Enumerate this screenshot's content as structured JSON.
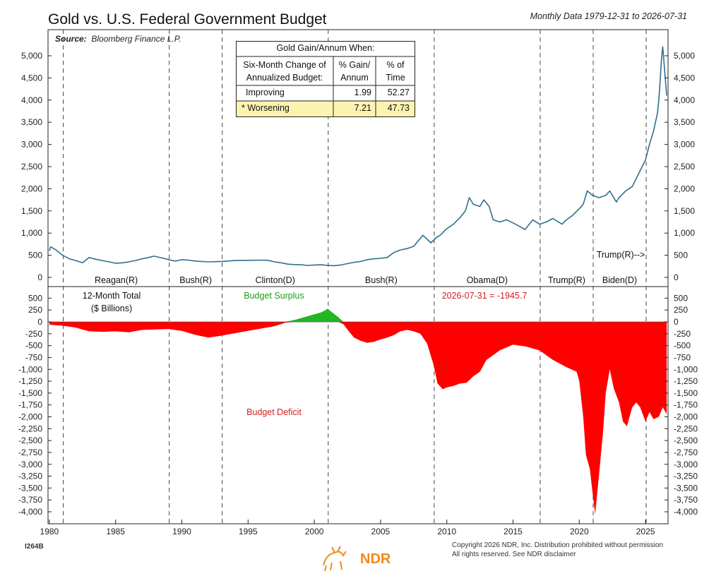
{
  "header": {
    "title": "Gold vs. U.S. Federal Government Budget",
    "subtitle": "Monthly Data 1979-12-31 to 2026-07-31",
    "source_label": "Source:",
    "source_value": "Bloomberg Finance L.P."
  },
  "footer": {
    "chart_id": "I264B",
    "copyright_line1": "Copyright 2026 NDR, Inc. Distribution prohibited without permission",
    "copyright_line2": "All rights reserved. See NDR disclaimer",
    "logo_text": "NDR"
  },
  "colors": {
    "gold_line": "#2f6f8f",
    "deficit": "#ff0000",
    "surplus": "#22b722",
    "table_highlight": "#fbf3b0",
    "surplus_label": "#1a9e1a",
    "deficit_label": "#d42020",
    "logo": "#f08a1c"
  },
  "stats_table": {
    "header": "Gold Gain/Annum When:",
    "col1_header": [
      "Six-Month Change of",
      "Annualized Budget:"
    ],
    "col2_header": [
      "% Gain/",
      "Annum"
    ],
    "col3_header": [
      "% of",
      "Time"
    ],
    "rows": [
      {
        "label": "Improving",
        "gain": "1.99",
        "time": "52.27"
      },
      {
        "label": "* Worsening",
        "gain": "7.21",
        "time": "47.73"
      }
    ]
  },
  "chart_data": [
    {
      "type": "line",
      "name": "gold-price",
      "series": [
        {
          "name": "Gold",
          "x": [
            1980.0,
            1980.1,
            1980.5,
            1981.0,
            1981.5,
            1982.0,
            1982.5,
            1983.0,
            1983.5,
            1984.0,
            1984.5,
            1985.0,
            1985.5,
            1986.0,
            1986.5,
            1987.0,
            1987.5,
            1987.9,
            1988.5,
            1989.0,
            1989.5,
            1990.0,
            1990.5,
            1991.0,
            1992.0,
            1993.0,
            1994.0,
            1995.0,
            1996.0,
            1996.5,
            1997.0,
            1997.5,
            1998.0,
            1998.5,
            1999.0,
            1999.5,
            2000.0,
            2000.5,
            2001.0,
            2001.5,
            2002.0,
            2002.5,
            2003.0,
            2003.5,
            2004.0,
            2004.5,
            2005.0,
            2005.5,
            2006.0,
            2006.5,
            2007.0,
            2007.5,
            2008.0,
            2008.2,
            2008.8,
            2009.2,
            2009.5,
            2010.0,
            2010.5,
            2011.0,
            2011.4,
            2011.7,
            2012.0,
            2012.5,
            2012.8,
            2013.2,
            2013.5,
            2014.0,
            2014.5,
            2015.0,
            2015.5,
            2015.9,
            2016.5,
            2017.0,
            2017.5,
            2018.0,
            2018.7,
            2019.0,
            2019.5,
            2020.0,
            2020.3,
            2020.6,
            2021.0,
            2021.5,
            2022.0,
            2022.3,
            2022.8,
            2023.0,
            2023.5,
            2024.0,
            2024.5,
            2025.0,
            2025.3,
            2025.6,
            2025.9,
            2026.0,
            2026.1,
            2026.2,
            2026.3,
            2026.6
          ],
          "values": [
            600,
            690,
            620,
            500,
            420,
            380,
            330,
            450,
            410,
            380,
            350,
            320,
            330,
            350,
            380,
            420,
            450,
            480,
            440,
            400,
            370,
            400,
            390,
            370,
            350,
            360,
            380,
            385,
            390,
            385,
            350,
            330,
            300,
            290,
            285,
            270,
            280,
            285,
            270,
            265,
            280,
            310,
            340,
            360,
            400,
            420,
            430,
            450,
            560,
            620,
            650,
            700,
            880,
            950,
            780,
            900,
            950,
            1100,
            1200,
            1350,
            1500,
            1800,
            1650,
            1600,
            1750,
            1600,
            1300,
            1250,
            1300,
            1230,
            1150,
            1080,
            1300,
            1200,
            1250,
            1330,
            1200,
            1290,
            1400,
            1550,
            1650,
            1950,
            1850,
            1800,
            1850,
            1950,
            1700,
            1800,
            1950,
            2050,
            2350,
            2650,
            3000,
            3300,
            3700,
            4000,
            4400,
            4900,
            5200,
            4100
          ]
        }
      ],
      "ylim": [
        0,
        5300
      ],
      "yticks": [
        0,
        500,
        1000,
        1500,
        2000,
        2500,
        3000,
        3500,
        4000,
        4500,
        5000
      ],
      "ytick_labels": [
        "0",
        "500",
        "1,000",
        "1,500",
        "2,000",
        "2,500",
        "3,000",
        "3,500",
        "4,000",
        "4,500",
        "5,000"
      ],
      "annotations": {
        "trump2": "Trump(R)-->"
      },
      "grid": false
    },
    {
      "type": "area",
      "name": "budget-12m-total",
      "series": [
        {
          "name": "Budget",
          "x": [
            1980.0,
            1981.0,
            1982.0,
            1983.0,
            1984.0,
            1985.0,
            1986.0,
            1987.0,
            1988.0,
            1989.0,
            1990.0,
            1991.0,
            1992.0,
            1993.0,
            1994.0,
            1995.0,
            1996.0,
            1997.0,
            1997.8,
            1998.5,
            1999.0,
            1999.5,
            2000.0,
            2000.5,
            2000.8,
            2001.0,
            2001.3,
            2001.8,
            2002.2,
            2002.6,
            2003.0,
            2003.5,
            2004.0,
            2004.5,
            2005.0,
            2005.5,
            2006.0,
            2006.5,
            2007.0,
            2007.5,
            2008.0,
            2008.5,
            2009.0,
            2009.3,
            2009.7,
            2010.0,
            2010.5,
            2011.0,
            2011.5,
            2012.0,
            2012.5,
            2013.0,
            2013.5,
            2014.0,
            2015.0,
            2016.0,
            2017.0,
            2018.0,
            2019.0,
            2019.8,
            2020.0,
            2020.3,
            2020.5,
            2020.8,
            2021.0,
            2021.2,
            2021.5,
            2021.8,
            2022.0,
            2022.3,
            2022.6,
            2023.0,
            2023.3,
            2023.6,
            2024.0,
            2024.3,
            2024.6,
            2025.0,
            2025.3,
            2025.6,
            2026.0,
            2026.3,
            2026.6
          ],
          "values": [
            -60,
            -80,
            -120,
            -200,
            -210,
            -200,
            -220,
            -170,
            -160,
            -150,
            -190,
            -270,
            -330,
            -290,
            -240,
            -190,
            -140,
            -90,
            -20,
            40,
            80,
            120,
            160,
            200,
            240,
            280,
            210,
            100,
            -50,
            -200,
            -330,
            -400,
            -440,
            -420,
            -370,
            -330,
            -280,
            -200,
            -170,
            -200,
            -250,
            -450,
            -900,
            -1300,
            -1420,
            -1380,
            -1350,
            -1300,
            -1280,
            -1150,
            -1050,
            -800,
            -700,
            -600,
            -480,
            -520,
            -600,
            -800,
            -950,
            -1050,
            -1250,
            -2000,
            -2800,
            -3100,
            -3600,
            -4050,
            -3200,
            -2300,
            -1500,
            -1000,
            -1400,
            -1700,
            -2100,
            -2200,
            -1800,
            -1700,
            -1800,
            -2100,
            -1900,
            -2050,
            -2000,
            -1800,
            -1945.7
          ]
        }
      ],
      "ylim": [
        -4100,
        600
      ],
      "yticks": [
        500,
        250,
        0,
        -250,
        -500,
        -750,
        -1000,
        -1250,
        -1500,
        -1750,
        -2000,
        -2250,
        -2500,
        -2750,
        -3000,
        -3250,
        -3500,
        -3750,
        -4000
      ],
      "ytick_labels": [
        "500",
        "250",
        "0",
        "-250",
        "-500",
        "-750",
        "-1,000",
        "-1,250",
        "-1,500",
        "-1,750",
        "-2,000",
        "-2,250",
        "-2,500",
        "-2,750",
        "-3,000",
        "-3,250",
        "-3,500",
        "-3,750",
        "-4,000"
      ],
      "ylabel": [
        "12-Month Total",
        "($ Billions)"
      ],
      "annotations": {
        "surplus": "Budget Surplus",
        "deficit": "Budget Deficit",
        "latest": "2026-07-31 = -1945.7"
      },
      "grid": false
    }
  ],
  "x_axis": {
    "xlim": [
      1979.9,
      2026.7
    ],
    "ticks": [
      1980,
      1985,
      1990,
      1995,
      2000,
      2005,
      2010,
      2015,
      2020,
      2025
    ],
    "tick_labels": [
      "1980",
      "1985",
      "1990",
      "1995",
      "2000",
      "2005",
      "2010",
      "2015",
      "2020",
      "2025"
    ]
  },
  "administrations": [
    {
      "label": "Reagan(R)",
      "start": 1981.05,
      "end": 1989.05
    },
    {
      "label": "Bush(R)",
      "start": 1989.05,
      "end": 1993.05
    },
    {
      "label": "Clinton(D)",
      "start": 1993.05,
      "end": 2001.05
    },
    {
      "label": "Bush(R)",
      "start": 2001.05,
      "end": 2009.05
    },
    {
      "label": "Obama(D)",
      "start": 2009.05,
      "end": 2017.05
    },
    {
      "label": "Trump(R)",
      "start": 2017.05,
      "end": 2021.05
    },
    {
      "label": "Biden(D)",
      "start": 2021.05,
      "end": 2025.05
    }
  ],
  "term_boundaries": [
    1981.05,
    1989.05,
    1993.05,
    2001.05,
    2009.05,
    2017.05,
    2021.05,
    2025.05
  ]
}
